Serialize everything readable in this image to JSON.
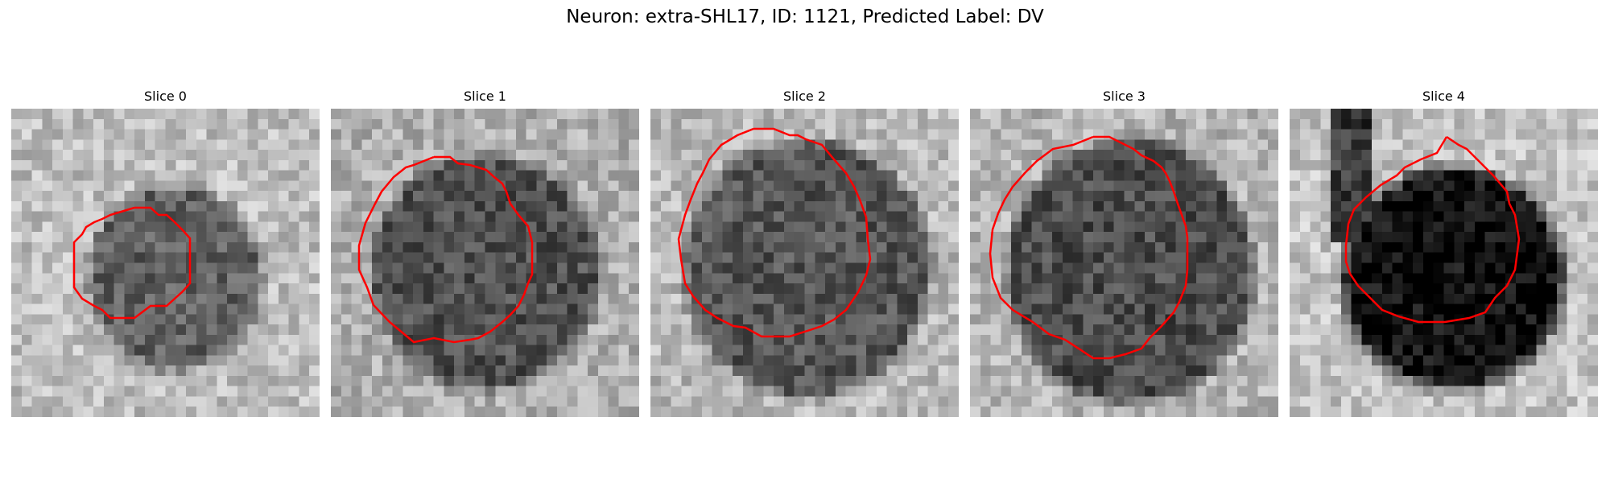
{
  "figure": {
    "title": "Neuron: extra-SHL17, ID: 1121, Predicted Label: DV"
  },
  "colors": {
    "contour": "#ff0000",
    "background": "#ffffff"
  },
  "panels": [
    {
      "title": "Slice 0"
    },
    {
      "title": "Slice 1"
    },
    {
      "title": "Slice 2"
    },
    {
      "title": "Slice 3"
    },
    {
      "title": "Slice 4"
    }
  ]
}
